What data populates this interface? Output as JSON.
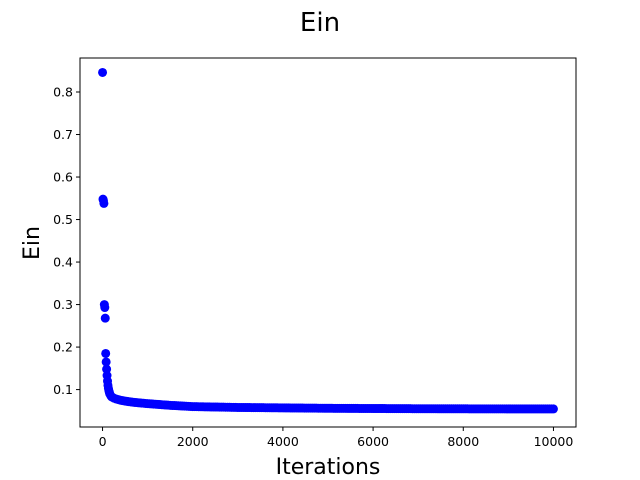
{
  "chart_data": {
    "type": "scatter",
    "title": "Ein",
    "xlabel": "Iterations",
    "ylabel": "Ein",
    "xlim": [
      -500,
      10500
    ],
    "ylim": [
      0.012,
      0.88
    ],
    "xticks": [
      0,
      2000,
      4000,
      6000,
      8000,
      10000
    ],
    "yticks": [
      0.1,
      0.2,
      0.3,
      0.4,
      0.5,
      0.6,
      0.7,
      0.8
    ],
    "grid": false,
    "marker_color": "#0000ff",
    "series": [
      {
        "x": [
          0,
          10,
          20,
          30,
          40,
          50,
          60,
          70,
          80,
          90,
          100,
          110,
          120,
          130,
          140,
          150,
          160,
          180,
          200,
          250,
          300,
          400,
          500,
          700,
          1000,
          1500,
          2000,
          2500,
          3000,
          4000,
          5000,
          6000,
          7000,
          8000,
          9000,
          10000
        ],
        "y": [
          0.846,
          0.548,
          0.545,
          0.538,
          0.3,
          0.293,
          0.268,
          0.185,
          0.165,
          0.148,
          0.133,
          0.12,
          0.11,
          0.103,
          0.098,
          0.094,
          0.09,
          0.086,
          0.083,
          0.08,
          0.078,
          0.075,
          0.073,
          0.07,
          0.067,
          0.063,
          0.06,
          0.059,
          0.058,
          0.057,
          0.056,
          0.0555,
          0.055,
          0.0548,
          0.0546,
          0.0545
        ]
      }
    ]
  }
}
